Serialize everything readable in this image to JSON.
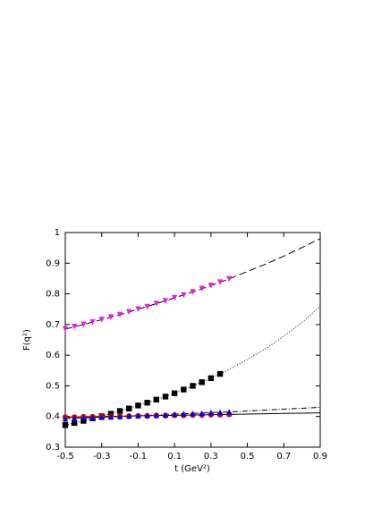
{
  "chart_data": {
    "type": "scatter",
    "xlabel": "t (GeV²)",
    "ylabel": "F(q²)",
    "xlim": [
      -0.5,
      0.9
    ],
    "ylim": [
      0.3,
      1
    ],
    "xticks": [
      -0.5,
      -0.3,
      -0.1,
      0.1,
      0.3,
      0.5,
      0.7,
      0.9
    ],
    "yticks": [
      0.3,
      0.4,
      0.5,
      0.6,
      0.7,
      0.8,
      0.9,
      1
    ],
    "series": [
      {
        "kind": "line",
        "dash": "8,4",
        "color": "#000000",
        "x": [
          -0.5,
          -0.4,
          -0.3,
          -0.2,
          -0.1,
          0,
          0.1,
          0.2,
          0.3,
          0.4,
          0.5,
          0.6,
          0.7,
          0.8,
          0.9
        ],
        "values": [
          0.685,
          0.7,
          0.716,
          0.732,
          0.75,
          0.768,
          0.787,
          0.806,
          0.827,
          0.849,
          0.873,
          0.897,
          0.923,
          0.951,
          0.98
        ]
      },
      {
        "kind": "line",
        "dash": "1,2",
        "color": "#000000",
        "x": [
          -0.5,
          -0.4,
          -0.3,
          -0.2,
          -0.1,
          0,
          0.1,
          0.2,
          0.3,
          0.4,
          0.5,
          0.6,
          0.7,
          0.8,
          0.9
        ],
        "values": [
          0.372,
          0.386,
          0.401,
          0.418,
          0.436,
          0.455,
          0.476,
          0.5,
          0.525,
          0.554,
          0.586,
          0.621,
          0.662,
          0.707,
          0.76
        ]
      },
      {
        "kind": "line",
        "dash": "6,2,1,2",
        "color": "#000000",
        "x": [
          -0.5,
          -0.4,
          -0.3,
          -0.2,
          -0.1,
          0,
          0.1,
          0.2,
          0.3,
          0.4,
          0.5,
          0.6,
          0.7,
          0.8,
          0.9
        ],
        "values": [
          0.393,
          0.396,
          0.398,
          0.4,
          0.403,
          0.405,
          0.408,
          0.41,
          0.413,
          0.415,
          0.418,
          0.421,
          0.424,
          0.427,
          0.43
        ]
      },
      {
        "kind": "line",
        "dash": "none",
        "color": "#000000",
        "x": [
          -0.5,
          -0.4,
          -0.3,
          -0.2,
          -0.1,
          0,
          0.1,
          0.2,
          0.3,
          0.4,
          0.5,
          0.6,
          0.7,
          0.8,
          0.9
        ],
        "values": [
          0.398,
          0.399,
          0.4,
          0.401,
          0.402,
          0.403,
          0.404,
          0.405,
          0.406,
          0.407,
          0.408,
          0.409,
          0.41,
          0.411,
          0.412
        ]
      },
      {
        "kind": "points",
        "marker": "triangle-down",
        "color": "#e020e0",
        "x": [
          -0.5,
          -0.45,
          -0.4,
          -0.35,
          -0.3,
          -0.25,
          -0.2,
          -0.15,
          -0.1,
          -0.05,
          0,
          0.05,
          0.1,
          0.15,
          0.2,
          0.25,
          0.3,
          0.35,
          0.4
        ],
        "values": [
          0.685,
          0.693,
          0.7,
          0.708,
          0.716,
          0.724,
          0.732,
          0.741,
          0.75,
          0.758,
          0.768,
          0.777,
          0.787,
          0.796,
          0.806,
          0.817,
          0.827,
          0.838,
          0.849
        ]
      },
      {
        "kind": "points",
        "marker": "square",
        "color": "#000000",
        "x": [
          -0.5,
          -0.45,
          -0.4,
          -0.35,
          -0.3,
          -0.25,
          -0.2,
          -0.15,
          -0.1,
          -0.05,
          0,
          0.05,
          0.1,
          0.15,
          0.2,
          0.25,
          0.3,
          0.35
        ],
        "values": [
          0.372,
          0.379,
          0.386,
          0.394,
          0.401,
          0.409,
          0.418,
          0.426,
          0.436,
          0.445,
          0.455,
          0.465,
          0.476,
          0.488,
          0.5,
          0.512,
          0.525,
          0.539
        ]
      },
      {
        "kind": "points",
        "marker": "circle",
        "color": "#e00000",
        "x": [
          -0.5,
          -0.45,
          -0.4,
          -0.35,
          -0.3,
          -0.25,
          -0.2,
          -0.15,
          -0.1,
          -0.05,
          0,
          0.05,
          0.1,
          0.15,
          0.2,
          0.25,
          0.3,
          0.35,
          0.4
        ],
        "values": [
          0.398,
          0.398,
          0.399,
          0.399,
          0.4,
          0.4,
          0.401,
          0.401,
          0.402,
          0.402,
          0.403,
          0.403,
          0.404,
          0.404,
          0.405,
          0.405,
          0.406,
          0.406,
          0.407
        ]
      },
      {
        "kind": "points",
        "marker": "triangle-up",
        "color": "#0000e0",
        "x": [
          -0.5,
          -0.45,
          -0.4,
          -0.35,
          -0.3,
          -0.25,
          -0.2,
          -0.15,
          -0.1,
          -0.05,
          0,
          0.05,
          0.1,
          0.15,
          0.2,
          0.25,
          0.3,
          0.35,
          0.4
        ],
        "values": [
          0.393,
          0.394,
          0.396,
          0.397,
          0.398,
          0.399,
          0.4,
          0.402,
          0.403,
          0.404,
          0.405,
          0.406,
          0.408,
          0.409,
          0.41,
          0.411,
          0.413,
          0.414,
          0.415
        ]
      }
    ]
  }
}
